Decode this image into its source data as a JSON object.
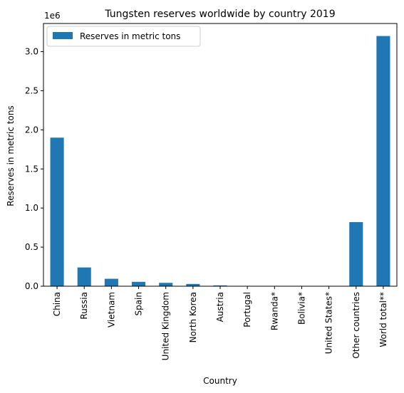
{
  "chart_data": {
    "type": "bar",
    "title": "Tungsten reserves worldwide by country 2019",
    "xlabel": "Country",
    "ylabel": "Reserves in metric tons",
    "y_offset_label": "1e6",
    "ylim": [
      0,
      3360000
    ],
    "yticks": [
      0,
      500000,
      1000000,
      1500000,
      2000000,
      2500000,
      3000000
    ],
    "ytick_labels": [
      "0.0",
      "0.5",
      "1.0",
      "1.5",
      "2.0",
      "2.5",
      "3.0"
    ],
    "legend_position": "top-left",
    "grid": false,
    "bar_color": "#1f77b4",
    "categories": [
      "China",
      "Russia",
      "Vietnam",
      "Spain",
      "United Kingdom",
      "North Korea",
      "Austria",
      "Portugal",
      "Rwanda*",
      "Bolivia*",
      "United States*",
      "Other countries",
      "World total**"
    ],
    "series": [
      {
        "name": "Reserves in metric tons",
        "values": [
          1900000,
          240000,
          95000,
          56000,
          43000,
          29000,
          10000,
          3100,
          0,
          0,
          0,
          820000,
          3200000
        ]
      }
    ]
  }
}
